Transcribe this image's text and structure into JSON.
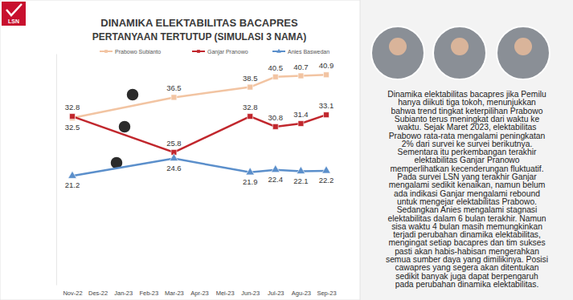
{
  "logo": "LSN",
  "chart_data": {
    "type": "line",
    "title": "DINAMIKA ELEKTABILITAS BACAPRES",
    "subtitle": "PERTANYAAN TERTUTUP (SIMULASI 3 NAMA)",
    "categories": [
      "Nov-22",
      "Des-22",
      "Jan-23",
      "Feb-23",
      "Mar-23",
      "Apr-23",
      "Mei-23",
      "Jun-23",
      "Jul-23",
      "Agu-23",
      "Sep-23"
    ],
    "series": [
      {
        "name": "Prabowo Subianto",
        "color": "#f2c4a2",
        "marker": "square",
        "values": [
          32.5,
          null,
          null,
          null,
          36.5,
          null,
          null,
          38.5,
          40.5,
          40.7,
          40.9
        ]
      },
      {
        "name": "Ganjar Pranowo",
        "color": "#c1272d",
        "marker": "square",
        "values": [
          32.8,
          null,
          null,
          null,
          25.8,
          null,
          null,
          32.8,
          30.8,
          31.4,
          33.1
        ]
      },
      {
        "name": "Anies Baswedan",
        "color": "#5b8fcb",
        "marker": "triangle",
        "values": [
          21.2,
          null,
          null,
          null,
          24.6,
          null,
          null,
          21.9,
          22.4,
          22.1,
          22.2
        ]
      }
    ],
    "ylim": [
      0,
      45
    ],
    "tick_labels": "x",
    "data_labels": true,
    "legend": "top",
    "grid": false
  },
  "description": {
    "lines": [
      "Dinamika elektabilitas bacapres jika Pemilu",
      "hanya diikuti tiga tokoh, menunjukkan",
      "bahwa trend tingkat keterpilihan Prabowo",
      "Subianto terus meningkat dari waktu ke",
      "waktu. Sejak Maret 2023, elektabilitas",
      "Prabowo rata-rata mengalami peningkatan",
      "2% dari survei ke survei berikutnya.",
      "Sementara itu perkembangan terakhir",
      "elektabilitas Ganjar Pranowo",
      "memperlihatkan kecenderungan fluktuatif.",
      "Pada survei LSN yang terakhir Ganjar",
      "mengalami sedikit kenaikan, namun belum",
      "ada indikasi Ganjar mengalami rebound",
      "untuk mengejar elektabilitas Prabowo.",
      "Sedangkan Anies mengalami stagnasi",
      "elektabilitas dalam 6 bulan terakhir. Namun",
      "sisa waktu 4 bulan masih memungkinkan",
      "terjadi perubahan dinamika elektabilitas,",
      "mengingat setiap bacapres dan tim sukses",
      "pasti akan habis-habisan mengerahkan",
      "semua sumber daya yang dimilikinya. Posisi",
      "cawapres yang segera akan ditentukan",
      "sedikit banyak juga dapat berpengaruh",
      "pada perubahan dinamika elektabilitas."
    ]
  }
}
